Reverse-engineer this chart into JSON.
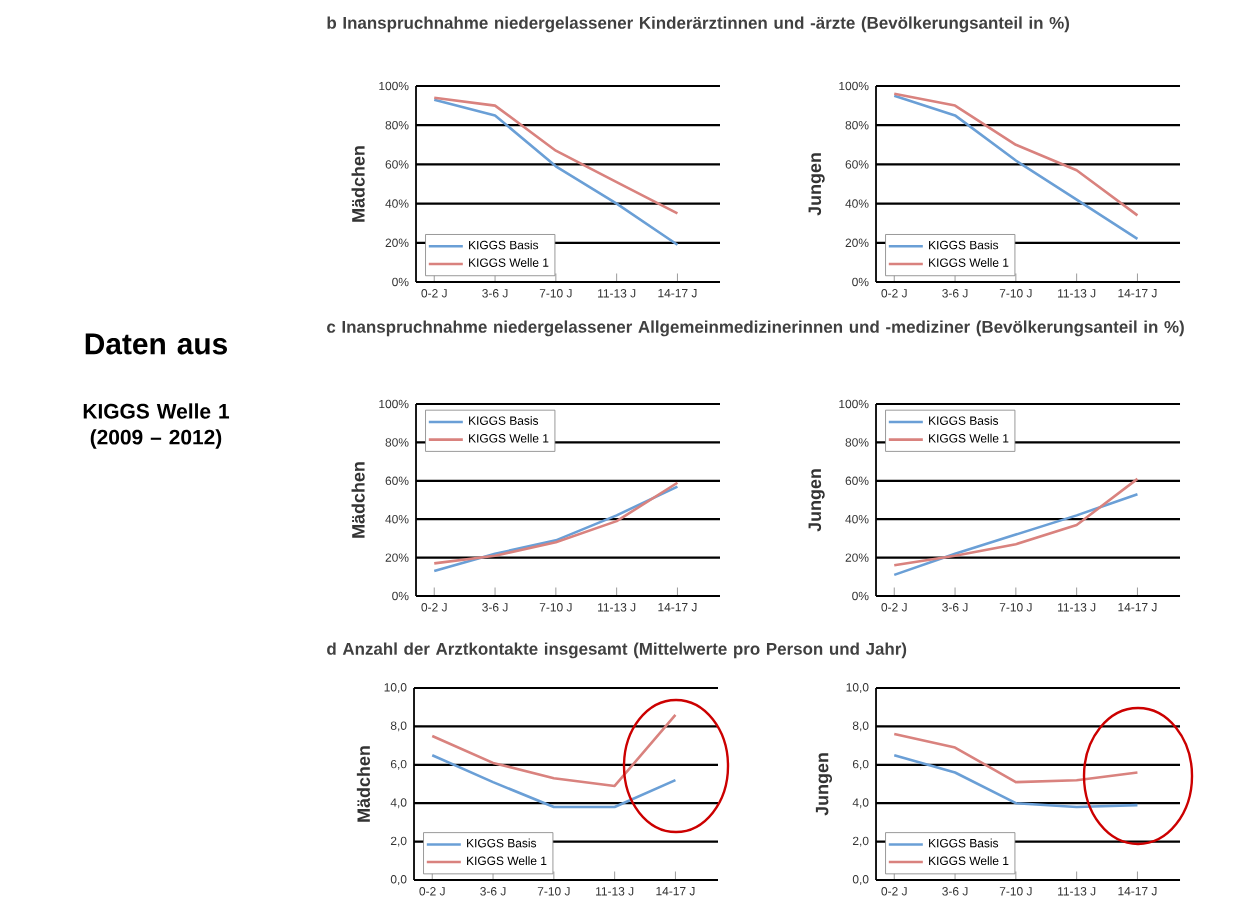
{
  "chart_data": [
    {
      "type": "other",
      "annotations": [
        "Daten aus",
        "KIGGS Welle 1 (2009 – 2012)"
      ]
    },
    {
      "type": "line",
      "title": "b Inanspruchnahme niedergelassener Kinderärztinnen und -ärzte (Bevölkerungsanteil in %)",
      "ylabel": "Mädchen",
      "categories": [
        "0-2 J",
        "3-6 J",
        "7-10 J",
        "11-13 J",
        "14-17 J"
      ],
      "ylim": [
        0,
        100
      ],
      "yticks": [
        {
          "value": 0,
          "label": "0%"
        },
        {
          "value": 20,
          "label": "20%"
        },
        {
          "value": 40,
          "label": "40%"
        },
        {
          "value": 60,
          "label": "60%"
        },
        {
          "value": 80,
          "label": "80%"
        },
        {
          "value": 100,
          "label": "100%"
        }
      ],
      "grid": "y",
      "legend": "bottom left",
      "marker": "none",
      "line_style": "solid",
      "series": [
        {
          "name": "KIGGS Basis",
          "color": "#6a9fd6",
          "values": [
            93,
            85,
            59,
            40,
            19
          ]
        },
        {
          "name": "KIGGS Welle 1",
          "color": "#d9827e",
          "values": [
            94,
            90,
            67,
            51,
            35
          ]
        }
      ]
    },
    {
      "type": "line",
      "ylabel": "Jungen",
      "categories": [
        "0-2 J",
        "3-6 J",
        "7-10 J",
        "11-13 J",
        "14-17 J"
      ],
      "ylim": [
        0,
        100
      ],
      "yticks": [
        {
          "value": 0,
          "label": "0%"
        },
        {
          "value": 20,
          "label": "20%"
        },
        {
          "value": 40,
          "label": "40%"
        },
        {
          "value": 60,
          "label": "60%"
        },
        {
          "value": 80,
          "label": "80%"
        },
        {
          "value": 100,
          "label": "100%"
        }
      ],
      "grid": "y",
      "legend": "bottom left",
      "marker": "none",
      "line_style": "solid",
      "series": [
        {
          "name": "KIGGS Basis",
          "color": "#6a9fd6",
          "values": [
            95,
            85,
            62,
            42,
            22
          ]
        },
        {
          "name": "KIGGS Welle 1",
          "color": "#d9827e",
          "values": [
            96,
            90,
            70,
            57,
            34
          ]
        }
      ]
    },
    {
      "type": "line",
      "title": "c Inanspruchnahme niedergelassener Allgemeinmedizinerinnen und -mediziner (Bevölkerungsanteil in %)",
      "ylabel": "Mädchen",
      "categories": [
        "0-2 J",
        "3-6 J",
        "7-10 J",
        "11-13 J",
        "14-17 J"
      ],
      "ylim": [
        0,
        100
      ],
      "yticks": [
        {
          "value": 0,
          "label": "0%"
        },
        {
          "value": 20,
          "label": "20%"
        },
        {
          "value": 40,
          "label": "40%"
        },
        {
          "value": 60,
          "label": "60%"
        },
        {
          "value": 80,
          "label": "80%"
        },
        {
          "value": 100,
          "label": "100%"
        }
      ],
      "grid": "y",
      "legend": "top left",
      "marker": "none",
      "line_style": "solid",
      "series": [
        {
          "name": "KIGGS Basis",
          "color": "#6a9fd6",
          "values": [
            13,
            22,
            29,
            42,
            57
          ]
        },
        {
          "name": "KIGGS Welle 1",
          "color": "#d9827e",
          "values": [
            17,
            21,
            28,
            39,
            59
          ]
        }
      ]
    },
    {
      "type": "line",
      "ylabel": "Jungen",
      "categories": [
        "0-2 J",
        "3-6 J",
        "7-10 J",
        "11-13 J",
        "14-17 J"
      ],
      "ylim": [
        0,
        100
      ],
      "yticks": [
        {
          "value": 0,
          "label": "0%"
        },
        {
          "value": 20,
          "label": "20%"
        },
        {
          "value": 40,
          "label": "40%"
        },
        {
          "value": 60,
          "label": "60%"
        },
        {
          "value": 80,
          "label": "80%"
        },
        {
          "value": 100,
          "label": "100%"
        }
      ],
      "grid": "y",
      "legend": "top left",
      "marker": "none",
      "line_style": "solid",
      "series": [
        {
          "name": "KIGGS Basis",
          "color": "#6a9fd6",
          "values": [
            11,
            22,
            32,
            42,
            53
          ]
        },
        {
          "name": "KIGGS Welle 1",
          "color": "#d9827e",
          "values": [
            16,
            21,
            27,
            37,
            61
          ]
        }
      ]
    },
    {
      "type": "line",
      "title": "d Anzahl der Arztkontakte insgesamt (Mittelwerte pro Person und Jahr)",
      "ylabel": "Mädchen",
      "categories": [
        "0-2 J",
        "3-6 J",
        "7-10 J",
        "11-13 J",
        "14-17 J"
      ],
      "ylim": [
        0,
        10
      ],
      "yticks": [
        {
          "value": 0,
          "label": "0,0"
        },
        {
          "value": 2,
          "label": "2,0"
        },
        {
          "value": 4,
          "label": "4,0"
        },
        {
          "value": 6,
          "label": "6,0"
        },
        {
          "value": 8,
          "label": "8,0"
        },
        {
          "value": 10,
          "label": "10,0"
        }
      ],
      "grid": "y",
      "legend": "bottom left",
      "marker": "none",
      "line_style": "solid",
      "series": [
        {
          "name": "KIGGS Basis",
          "color": "#6a9fd6",
          "values": [
            6.5,
            5.1,
            3.8,
            3.8,
            5.2
          ]
        },
        {
          "name": "KIGGS Welle 1",
          "color": "#d9827e",
          "values": [
            7.5,
            6.1,
            5.3,
            4.9,
            8.6
          ]
        }
      ]
    },
    {
      "type": "line",
      "ylabel": "Jungen",
      "categories": [
        "0-2 J",
        "3-6 J",
        "7-10 J",
        "11-13 J",
        "14-17 J"
      ],
      "ylim": [
        0,
        10
      ],
      "yticks": [
        {
          "value": 0,
          "label": "0,0"
        },
        {
          "value": 2,
          "label": "2,0"
        },
        {
          "value": 4,
          "label": "4,0"
        },
        {
          "value": 6,
          "label": "6,0"
        },
        {
          "value": 8,
          "label": "8,0"
        },
        {
          "value": 10,
          "label": "10,0"
        }
      ],
      "grid": "y",
      "legend": "bottom left",
      "marker": "none",
      "line_style": "solid",
      "series": [
        {
          "name": "KIGGS Basis",
          "color": "#6a9fd6",
          "values": [
            6.5,
            5.6,
            4.0,
            3.8,
            3.9
          ]
        },
        {
          "name": "KIGGS Welle 1",
          "color": "#d9827e",
          "values": [
            7.6,
            6.9,
            5.1,
            5.2,
            5.6
          ]
        }
      ]
    }
  ]
}
